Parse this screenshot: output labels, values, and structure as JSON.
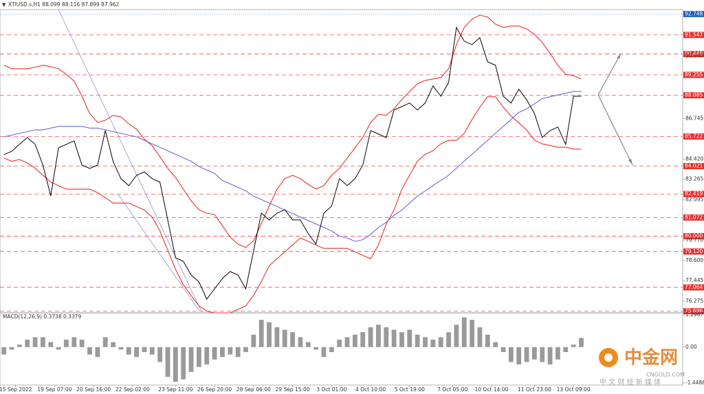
{
  "chart_data": [
    {
      "type": "line",
      "title": "XTIUSD.s,H1  88.099 88.116 87.899 87.962",
      "x": [
        1,
        3,
        5,
        7,
        9,
        11,
        13,
        15,
        17,
        19,
        21,
        23,
        25,
        27,
        29,
        31,
        33,
        35,
        37,
        39,
        41,
        43,
        45,
        47,
        49,
        51,
        53,
        55,
        57,
        59,
        61,
        63,
        65,
        67,
        69,
        71,
        73,
        75,
        77,
        79,
        81,
        83,
        85,
        87,
        89,
        91,
        93,
        95,
        97,
        99,
        101,
        103,
        105,
        107,
        109,
        111,
        113,
        115,
        117,
        119,
        121,
        123,
        125,
        127,
        129,
        131,
        133,
        135,
        137,
        139,
        141,
        143,
        145,
        147,
        149
      ],
      "xlim": [
        0,
        175
      ],
      "xticks": [
        {
          "value": 4,
          "label": "15 Sep 2022"
        },
        {
          "value": 14,
          "label": "19 Sep 07:00"
        },
        {
          "value": 24,
          "label": "20 Sep 16:00"
        },
        {
          "value": 34,
          "label": "22 Sep 02:00"
        },
        {
          "value": 45,
          "label": "23 Sep 11:00"
        },
        {
          "value": 55,
          "label": "26 Sep 20:00"
        },
        {
          "value": 65,
          "label": "28 Sep 06:00"
        },
        {
          "value": 75,
          "label": "29 Sep 15:00"
        },
        {
          "value": 85,
          "label": "3 Oct 01:00"
        },
        {
          "value": 95,
          "label": "4 Oct 10:00"
        },
        {
          "value": 105,
          "label": "5 Oct 19:00"
        },
        {
          "value": 116,
          "label": "7 Oct 05:00"
        },
        {
          "value": 126,
          "label": "10 Oct 14:00"
        },
        {
          "value": 137,
          "label": "11 Oct 23:00"
        },
        {
          "value": 147,
          "label": "13 Oct 09:00"
        }
      ],
      "ylim": [
        75.6,
        93.0
      ],
      "yticks": [
        {
          "value": 90.34,
          "label": "90.340"
        },
        86.745,
        {
          "value": 84.42,
          "label": "84.420"
        },
        83.265,
        82.095,
        {
          "value": 79.77,
          "label": "79.770"
        },
        {
          "value": 78.6,
          "label": "78.600"
        },
        77.445,
        76.275
      ],
      "levels": [
        91.547,
        90.449,
        89.255,
        88.085,
        85.722,
        84.021,
        82.419,
        81.072,
        {
          "value": 80,
          "label": "80.000"
        },
        {
          "value": 79.12,
          "label": "79.120"
        },
        77.064,
        75.696
      ],
      "level_color": "#e8312f",
      "marker": {
        "value": 92.748,
        "label": "92.748"
      },
      "marker_color": "#1f5fbf",
      "series": [
        {
          "color": "#000000",
          "values": [
            84.68,
            84.87,
            85.27,
            85.66,
            85.27,
            84.08,
            82.31,
            85.07,
            85.27,
            85.47,
            84.08,
            83.89,
            84.08,
            86.06,
            84.28,
            83.3,
            82.9,
            83.49,
            83.69,
            83.3,
            83.1,
            80.93,
            78.76,
            78.56,
            77.77,
            77.38,
            76.39,
            76.98,
            77.57,
            77.97,
            77.77,
            76.98,
            79.15,
            81.32,
            80.93,
            81.32,
            81.52,
            80.93,
            80.93,
            80.14,
            79.55,
            81.32,
            81.72,
            83.3,
            82.9,
            83.3,
            84.08,
            86.06,
            85.86,
            85.66,
            87.24,
            87.44,
            87.64,
            87.24,
            87.64,
            88.62,
            88.03,
            88.82,
            91.98,
            91.19,
            90.99,
            91.39,
            90.0,
            89.81,
            88.03,
            87.64,
            88.43,
            87.83,
            87.04,
            85.66,
            86.06,
            86.26,
            85.27,
            88.03,
            88.03
          ]
        },
        {
          "color": "#e8312f",
          "values": [
            89.81,
            89.61,
            89.61,
            89.61,
            89.69,
            89.81,
            89.73,
            89.61,
            89.29,
            88.9,
            88.03,
            87.04,
            86.53,
            86.65,
            86.93,
            86.85,
            86.45,
            86.14,
            85.58,
            85.19,
            84.56,
            83.89,
            83.37,
            82.7,
            82.03,
            81.52,
            81.32,
            81.24,
            80.61,
            79.94,
            79.55,
            79.35,
            79.74,
            80.73,
            81.72,
            82.7,
            83.3,
            83.49,
            83.3,
            82.98,
            82.7,
            82.9,
            83.49,
            83.89,
            84.48,
            85.07,
            85.66,
            86.53,
            87.0,
            86.93,
            87.32,
            87.83,
            88.31,
            88.74,
            88.94,
            89.02,
            89.1,
            89.61,
            90.99,
            91.98,
            92.45,
            92.69,
            92.57,
            92.17,
            91.98,
            92.06,
            92.06,
            91.9,
            91.58,
            91.11,
            90.48,
            89.81,
            89.29,
            89.21,
            89.02
          ]
        },
        {
          "color": "#e8312f",
          "values": [
            84.48,
            84.3,
            84.4,
            84.2,
            83.9,
            83.5,
            83.1,
            82.9,
            82.7,
            82.7,
            82.7,
            82.7,
            82.5,
            82.2,
            81.9,
            81.9,
            81.9,
            81.7,
            81.5,
            81.1,
            80.3,
            79.2,
            78.1,
            77.2,
            76.6,
            76.0,
            75.7,
            75.6,
            75.6,
            75.6,
            75.8,
            76.0,
            76.6,
            77.4,
            78.3,
            78.7,
            79.1,
            79.5,
            79.9,
            79.7,
            79.5,
            79.3,
            79.3,
            79.3,
            79.3,
            79.1,
            78.9,
            78.7,
            79.5,
            80.7,
            81.5,
            82.7,
            83.5,
            84.3,
            84.7,
            84.9,
            85.3,
            85.5,
            85.5,
            85.9,
            86.7,
            87.4,
            88.0,
            88.0,
            87.4,
            86.9,
            86.5,
            86.1,
            85.5,
            85.3,
            85.2,
            85.1,
            85.1,
            85.0,
            85.0
          ]
        },
        {
          "color": "#6a6ad8",
          "values": [
            85.7,
            85.8,
            85.9,
            86.0,
            86.1,
            86.1,
            86.2,
            86.3,
            86.3,
            86.3,
            86.3,
            86.2,
            86.2,
            86.1,
            86.0,
            85.9,
            85.8,
            85.7,
            85.5,
            85.3,
            85.1,
            84.9,
            84.7,
            84.5,
            84.3,
            84.0,
            83.8,
            83.6,
            83.2,
            83.0,
            82.8,
            82.6,
            82.3,
            82.1,
            81.9,
            81.7,
            81.5,
            81.3,
            81.1,
            80.9,
            80.7,
            80.5,
            80.3,
            80.0,
            79.9,
            79.7,
            79.8,
            80.1,
            80.5,
            80.8,
            81.2,
            81.5,
            81.9,
            82.3,
            82.6,
            82.9,
            83.2,
            83.5,
            83.9,
            84.3,
            84.7,
            85.1,
            85.5,
            85.9,
            86.3,
            86.7,
            87.1,
            87.3,
            87.6,
            87.9,
            88.0,
            88.1,
            88.2,
            88.3,
            88.3
          ]
        }
      ]
    },
    {
      "type": "bar",
      "title": "MACD(12,26,9) 0.3738 0.3379",
      "x": [
        1,
        3,
        5,
        7,
        9,
        11,
        13,
        15,
        17,
        19,
        21,
        23,
        25,
        27,
        29,
        31,
        33,
        35,
        37,
        39,
        41,
        43,
        45,
        47,
        49,
        51,
        53,
        55,
        57,
        59,
        61,
        63,
        65,
        67,
        69,
        71,
        73,
        75,
        77,
        79,
        81,
        83,
        85,
        87,
        89,
        91,
        93,
        95,
        97,
        99,
        101,
        103,
        105,
        107,
        109,
        111,
        113,
        115,
        117,
        119,
        121,
        123,
        125,
        127,
        129,
        131,
        133,
        135,
        137,
        139,
        141,
        143,
        145,
        147,
        149
      ],
      "xlim": [
        0,
        175
      ],
      "values": [
        -0.3,
        -0.1,
        0.1,
        0.3,
        0.4,
        0.4,
        0.2,
        -0.1,
        0.3,
        0.4,
        0.3,
        -0.3,
        -0.4,
        0.4,
        0.2,
        -0.1,
        -0.3,
        -0.4,
        -0.2,
        -0.3,
        -0.6,
        -1.2,
        -1.4,
        -1.3,
        -1.0,
        -0.8,
        -0.7,
        -0.5,
        -0.4,
        -0.3,
        -0.4,
        -0.2,
        0.5,
        1.1,
        1.0,
        0.8,
        0.7,
        0.6,
        0.4,
        0.2,
        -0.1,
        -0.4,
        -0.2,
        0.3,
        0.4,
        0.5,
        0.6,
        0.8,
        0.9,
        0.8,
        0.7,
        0.6,
        0.7,
        0.5,
        0.4,
        0.3,
        0.4,
        0.6,
        0.9,
        1.2,
        1.1,
        0.8,
        0.5,
        0.2,
        -0.2,
        -0.6,
        -0.7,
        -0.6,
        -0.5,
        -0.6,
        -0.7,
        -0.5,
        -0.2,
        0.1,
        0.37
      ],
      "color": "#9a9a9a",
      "ylim": [
        -1.53,
        1.38
      ],
      "yticks": [
        1.2987,
        {
          "value": 0,
          "label": "0.00"
        },
        -1.4488
      ]
    }
  ],
  "watermark": {
    "logo": "中金网",
    "site": "CNGOLD.COM",
    "slogan": "中 文 财 经 新 媒 体"
  }
}
